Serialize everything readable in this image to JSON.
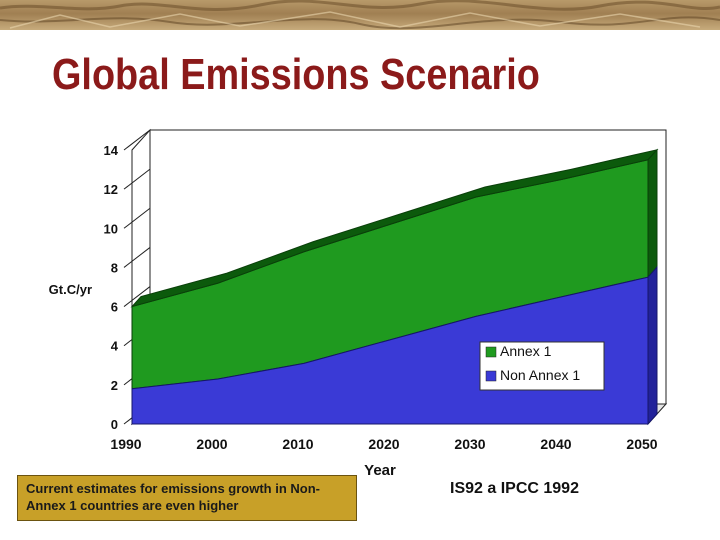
{
  "slide": {
    "title": "Global Emissions Scenario",
    "note": "Current estimates for emissions growth in Non-Annex 1 countries are even higher",
    "source": "IS92 a IPCC 1992"
  },
  "colors": {
    "title": "#8b1a1a",
    "annex1": "#1f9a1f",
    "annex1_top": "#0c5a0c",
    "non_annex1": "#3a3ad6",
    "non_annex1_side": "#22229a",
    "note_bg": "#c8a028"
  },
  "chart_data": {
    "type": "area",
    "stacked": true,
    "ylabel": "Gt.C/yr",
    "xlabel": "Year",
    "ylim": [
      0,
      14
    ],
    "yticks": [
      0,
      2,
      4,
      6,
      8,
      10,
      12,
      14
    ],
    "x": [
      1990,
      2000,
      2010,
      2020,
      2030,
      2040,
      2050
    ],
    "series": [
      {
        "name": "Non Annex 1",
        "values": [
          1.8,
          2.3,
          3.1,
          4.3,
          5.5,
          6.5,
          7.5
        ]
      },
      {
        "name": "Annex 1",
        "values": [
          4.2,
          4.9,
          5.7,
          5.9,
          6.1,
          6.0,
          6.0
        ]
      }
    ],
    "legend": "right-middle",
    "grid": false
  }
}
